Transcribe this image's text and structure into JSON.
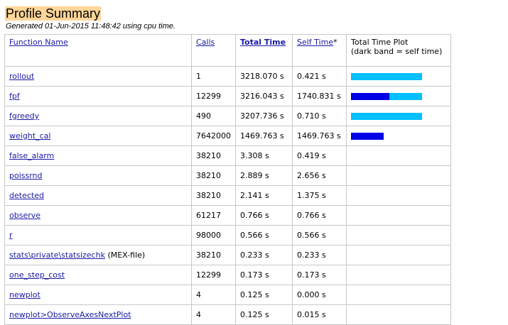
{
  "page": {
    "title": "Profile Summary",
    "generated": "Generated 01-Jun-2015 11:48:42 using cpu time."
  },
  "columns": {
    "function_name": "Function Name",
    "calls": "Calls",
    "total_time": "Total Time",
    "self_time": "Self Time",
    "self_time_marker": "*",
    "plot_line1": "Total Time Plot",
    "plot_line2": "(dark band = self time)"
  },
  "colors": {
    "total_band": "#00bfff",
    "self_band": "#0000e6",
    "title_highlight": "#ffd699",
    "link": "#1a1aa6"
  },
  "rows": [
    {
      "name": "rollout",
      "suffix": "",
      "calls": "1",
      "total": "3218.070 s",
      "self": "0.421 s",
      "total_frac": 1.0,
      "self_frac": 0.0
    },
    {
      "name": "fpf",
      "suffix": "",
      "calls": "12299",
      "total": "3216.043 s",
      "self": "1740.831 s",
      "total_frac": 1.0,
      "self_frac": 0.54
    },
    {
      "name": "fgreedy",
      "suffix": "",
      "calls": "490",
      "total": "3207.736 s",
      "self": "0.710 s",
      "total_frac": 1.0,
      "self_frac": 0.0
    },
    {
      "name": "weight_cal",
      "suffix": "",
      "calls": "7642000",
      "total": "1469.763 s",
      "self": "1469.763 s",
      "total_frac": 0.46,
      "self_frac": 0.46
    },
    {
      "name": "false_alarm",
      "suffix": "",
      "calls": "38210",
      "total": "3.308 s",
      "self": "0.419 s",
      "total_frac": 0.0,
      "self_frac": 0.0
    },
    {
      "name": "poissrnd",
      "suffix": "",
      "calls": "38210",
      "total": "2.889 s",
      "self": "2.656 s",
      "total_frac": 0.0,
      "self_frac": 0.0
    },
    {
      "name": "detected",
      "suffix": "",
      "calls": "38210",
      "total": "2.141 s",
      "self": "1.375 s",
      "total_frac": 0.0,
      "self_frac": 0.0
    },
    {
      "name": "observe",
      "suffix": "",
      "calls": "61217",
      "total": "0.766 s",
      "self": "0.766 s",
      "total_frac": 0.0,
      "self_frac": 0.0
    },
    {
      "name": "r",
      "suffix": "",
      "calls": "98000",
      "total": "0.566 s",
      "self": "0.566 s",
      "total_frac": 0.0,
      "self_frac": 0.0
    },
    {
      "name": "stats\\private\\statsizechk",
      "suffix": " (MEX-file)",
      "calls": "38210",
      "total": "0.233 s",
      "self": "0.233 s",
      "total_frac": 0.0,
      "self_frac": 0.0
    },
    {
      "name": "one_step_cost",
      "suffix": "",
      "calls": "12299",
      "total": "0.173 s",
      "self": "0.173 s",
      "total_frac": 0.0,
      "self_frac": 0.0
    },
    {
      "name": "newplot",
      "suffix": "",
      "calls": "4",
      "total": "0.125 s",
      "self": "0.000 s",
      "total_frac": 0.0,
      "self_frac": 0.0
    },
    {
      "name": "newplot>ObserveAxesNextPlot",
      "suffix": "",
      "calls": "4",
      "total": "0.125 s",
      "self": "0.015 s",
      "total_frac": 0.0,
      "self_frac": 0.0
    }
  ]
}
